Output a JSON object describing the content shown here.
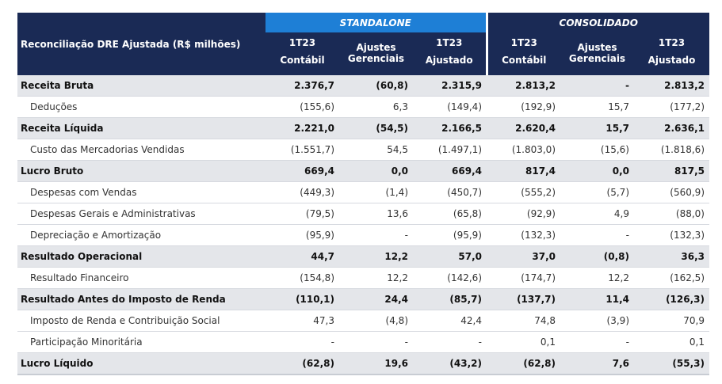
{
  "header": {
    "title": "Reconciliação DRE Ajustada (R$ milhões)",
    "groups": {
      "standalone": "STANDALONE",
      "consolidado": "CONSOLIDADO"
    },
    "cols": {
      "c1": [
        "1T23",
        "Contábil"
      ],
      "c2": "Ajustes Gerenciais",
      "c3": [
        "1T23",
        "Ajustado"
      ],
      "c4": [
        "1T23",
        "Contábil"
      ],
      "c5": "Ajustes Gerenciais",
      "c6": [
        "1T23",
        "Ajustado"
      ]
    }
  },
  "rows": [
    {
      "label": "Receita Bruta",
      "main": true,
      "values": [
        "2.376,7",
        "(60,8)",
        "2.315,9",
        "2.813,2",
        "-",
        "2.813,2"
      ]
    },
    {
      "label": "Deduções",
      "main": false,
      "values": [
        "(155,6)",
        "6,3",
        "(149,4)",
        "(192,9)",
        "15,7",
        "(177,2)"
      ]
    },
    {
      "label": "Receita Líquida",
      "main": true,
      "values": [
        "2.221,0",
        "(54,5)",
        "2.166,5",
        "2.620,4",
        "15,7",
        "2.636,1"
      ]
    },
    {
      "label": "Custo das Mercadorias Vendidas",
      "main": false,
      "values": [
        "(1.551,7)",
        "54,5",
        "(1.497,1)",
        "(1.803,0)",
        "(15,6)",
        "(1.818,6)"
      ]
    },
    {
      "label": "Lucro Bruto",
      "main": true,
      "values": [
        "669,4",
        "0,0",
        "669,4",
        "817,4",
        "0,0",
        "817,5"
      ]
    },
    {
      "label": "Despesas com Vendas",
      "main": false,
      "values": [
        "(449,3)",
        "(1,4)",
        "(450,7)",
        "(555,2)",
        "(5,7)",
        "(560,9)"
      ]
    },
    {
      "label": "Despesas Gerais e Administrativas",
      "main": false,
      "values": [
        "(79,5)",
        "13,6",
        "(65,8)",
        "(92,9)",
        "4,9",
        "(88,0)"
      ]
    },
    {
      "label": "Depreciação e Amortização",
      "main": false,
      "values": [
        "(95,9)",
        "-",
        "(95,9)",
        "(132,3)",
        "-",
        "(132,3)"
      ]
    },
    {
      "label": "Resultado Operacional",
      "main": true,
      "values": [
        "44,7",
        "12,2",
        "57,0",
        "37,0",
        "(0,8)",
        "36,3"
      ]
    },
    {
      "label": "Resultado Financeiro",
      "main": false,
      "values": [
        "(154,8)",
        "12,2",
        "(142,6)",
        "(174,7)",
        "12,2",
        "(162,5)"
      ]
    },
    {
      "label": "Resultado Antes do Imposto de Renda",
      "main": true,
      "values": [
        "(110,1)",
        "24,4",
        "(85,7)",
        "(137,7)",
        "11,4",
        "(126,3)"
      ]
    },
    {
      "label": "Imposto de Renda e Contribuição Social",
      "main": false,
      "values": [
        "47,3",
        "(4,8)",
        "42,4",
        "74,8",
        "(3,9)",
        "70,9"
      ]
    },
    {
      "label": "Participação Minoritária",
      "main": false,
      "values": [
        "-",
        "-",
        "-",
        "0,1",
        "-",
        "0,1"
      ]
    },
    {
      "label": "Lucro Líquido",
      "main": true,
      "values": [
        "(62,8)",
        "19,6",
        "(43,2)",
        "(62,8)",
        "7,6",
        "(55,3)"
      ]
    }
  ]
}
